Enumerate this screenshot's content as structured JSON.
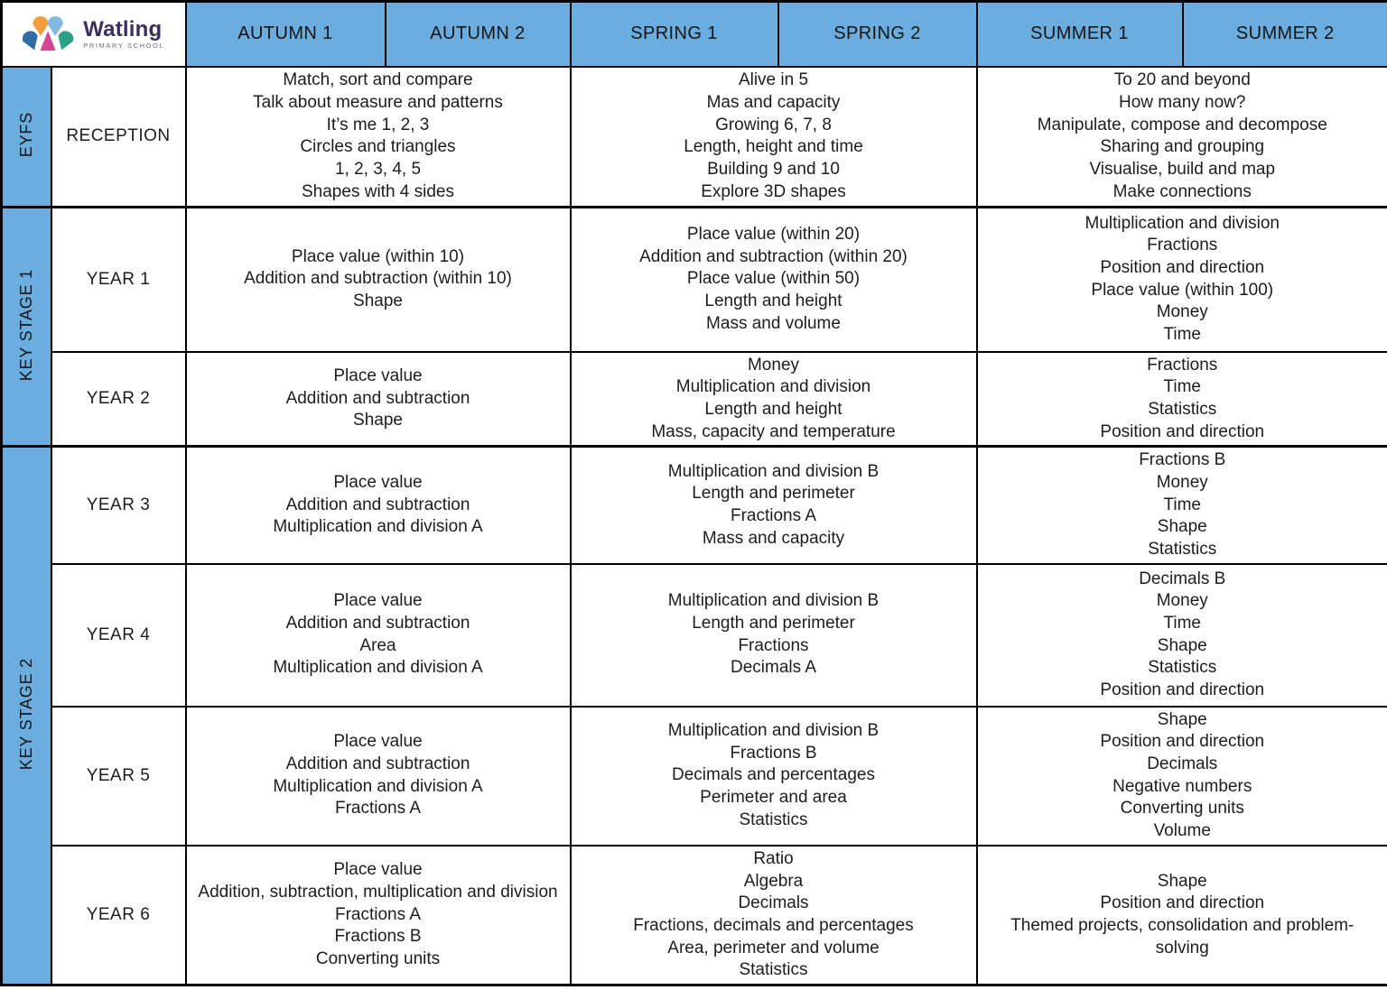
{
  "school": {
    "name": "Watling",
    "subtitle": "PRIMARY SCHOOL"
  },
  "terms": [
    "AUTUMN 1",
    "AUTUMN 2",
    "SPRING 1",
    "SPRING 2",
    "SUMMER 1",
    "SUMMER 2"
  ],
  "stages": {
    "eyfs": "EYFS",
    "ks1": "KEY STAGE 1",
    "ks2": "KEY STAGE 2"
  },
  "rows": [
    {
      "year": "RECEPTION",
      "autumn": [
        "Match, sort and compare",
        "Talk about measure and patterns",
        "It’s me 1, 2, 3",
        "Circles and triangles",
        "1, 2, 3, 4, 5",
        "Shapes with 4 sides"
      ],
      "spring": [
        "Alive in 5",
        "Mas and capacity",
        "Growing 6, 7, 8",
        "Length, height and time",
        "Building 9 and 10",
        "Explore 3D shapes"
      ],
      "summer": [
        "To 20 and beyond",
        "How many now?",
        "Manipulate, compose and decompose",
        "Sharing and grouping",
        "Visualise, build and map",
        "Make connections"
      ]
    },
    {
      "year": "YEAR 1",
      "autumn": [
        "Place value (within 10)",
        "Addition and subtraction (within 10)",
        "Shape"
      ],
      "spring": [
        "Place value (within 20)",
        "Addition and subtraction (within 20)",
        "Place value (within 50)",
        "Length and height",
        "Mass and volume"
      ],
      "summer": [
        "Multiplication and division",
        "Fractions",
        "Position and direction",
        "Place value (within 100)",
        "Money",
        "Time"
      ]
    },
    {
      "year": "YEAR 2",
      "autumn": [
        "Place value",
        "Addition and subtraction",
        "Shape"
      ],
      "spring": [
        "Money",
        "Multiplication and division",
        "Length and height",
        "Mass, capacity and temperature"
      ],
      "summer": [
        "Fractions",
        "Time",
        "Statistics",
        "Position and direction"
      ]
    },
    {
      "year": "YEAR 3",
      "autumn": [
        "Place value",
        "Addition and subtraction",
        "Multiplication and division A"
      ],
      "spring": [
        "Multiplication and division B",
        "Length and perimeter",
        "Fractions A",
        "Mass and capacity"
      ],
      "summer": [
        "Fractions B",
        "Money",
        "Time",
        "Shape",
        "Statistics"
      ]
    },
    {
      "year": "YEAR 4",
      "autumn": [
        "Place value",
        "Addition and subtraction",
        "Area",
        "Multiplication and division A"
      ],
      "spring": [
        "Multiplication and division B",
        "Length and perimeter",
        "Fractions",
        "Decimals A"
      ],
      "summer": [
        "Decimals B",
        "Money",
        "Time",
        "Shape",
        "Statistics",
        "Position and direction"
      ]
    },
    {
      "year": "YEAR 5",
      "autumn": [
        "Place value",
        "Addition and subtraction",
        "Multiplication and division A",
        "Fractions A"
      ],
      "spring": [
        "Multiplication and division B",
        "Fractions B",
        "Decimals and percentages",
        "Perimeter and area",
        "Statistics"
      ],
      "summer": [
        "Shape",
        "Position and direction",
        "Decimals",
        "Negative numbers",
        "Converting units",
        "Volume"
      ]
    },
    {
      "year": "YEAR 6",
      "autumn": [
        "Place value",
        "Addition, subtraction, multiplication and division",
        "Fractions A",
        "Fractions B",
        "Converting units"
      ],
      "spring": [
        "Ratio",
        "Algebra",
        "Decimals",
        "Fractions, decimals and percentages",
        "Area, perimeter and volume",
        "Statistics"
      ],
      "summer": [
        "Shape",
        "Position and direction",
        "Themed projects, consolidation and problem-solving"
      ]
    }
  ],
  "colors": {
    "header_blue": "#6badde",
    "border_black": "#000000",
    "logo_purple": "#3d2d5e",
    "logo_orange": "#f59c3c",
    "logo_pink": "#d5478f",
    "logo_light_blue": "#85b8e0",
    "logo_teal": "#2aa186",
    "logo_dark_blue": "#2f6ca5"
  }
}
